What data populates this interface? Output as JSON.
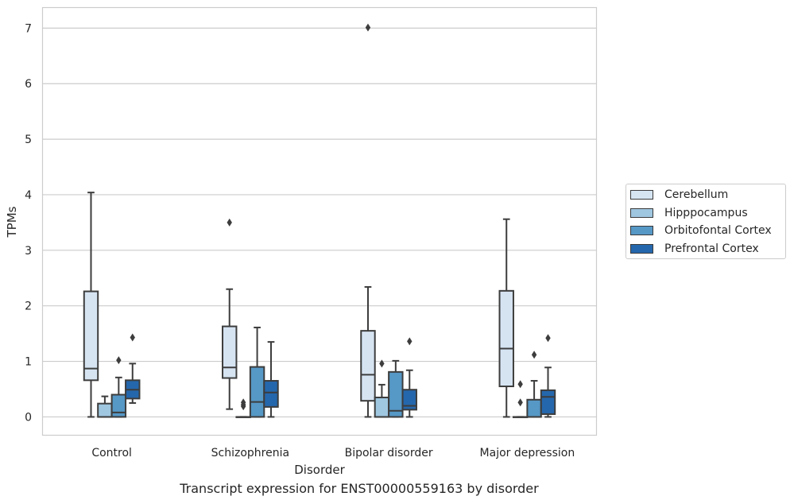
{
  "caption": "Transcript expression for ENST00000559163 by disorder",
  "chart_data": {
    "type": "box",
    "xlabel": "Disorder",
    "ylabel": "TPMs",
    "ylim": [
      -0.33,
      7.37
    ],
    "yticks": [
      0,
      1,
      2,
      3,
      4,
      5,
      6,
      7
    ],
    "grid": "horizontal",
    "legend_position": "right",
    "categories": [
      "Control",
      "Schizophrenia",
      "Bipolar disorder",
      "Major depression"
    ],
    "series": [
      {
        "name": "Cerebellum",
        "color": "#d6e4f2",
        "boxes": [
          {
            "whisker_low": 0,
            "q1": 0.66,
            "median": 0.87,
            "q3": 2.26,
            "whisker_high": 4.04,
            "outliers": []
          },
          {
            "whisker_low": 0.14,
            "q1": 0.7,
            "median": 0.89,
            "q3": 1.63,
            "whisker_high": 2.3,
            "outliers": [
              3.5
            ]
          },
          {
            "whisker_low": 0,
            "q1": 0.29,
            "median": 0.76,
            "q3": 1.55,
            "whisker_high": 2.34,
            "outliers": [
              7.01
            ]
          },
          {
            "whisker_low": 0,
            "q1": 0.55,
            "median": 1.23,
            "q3": 2.27,
            "whisker_high": 3.56,
            "outliers": []
          }
        ]
      },
      {
        "name": "Hipppocampus",
        "color": "#9fc7e0",
        "boxes": [
          {
            "whisker_low": 0,
            "q1": 0,
            "median": 0,
            "q3": 0.24,
            "whisker_high": 0.37,
            "outliers": []
          },
          {
            "whisker_low": 0,
            "q1": 0,
            "median": 0,
            "q3": 0,
            "whisker_high": 0,
            "outliers": [
              0.19,
              0.22,
              0.26
            ]
          },
          {
            "whisker_low": 0,
            "q1": 0,
            "median": 0,
            "q3": 0.35,
            "whisker_high": 0.58,
            "outliers": [
              0.96
            ]
          },
          {
            "whisker_low": 0,
            "q1": 0,
            "median": 0,
            "q3": 0,
            "whisker_high": 0,
            "outliers": [
              0.26,
              0.59
            ]
          }
        ]
      },
      {
        "name": "Orbitofontal Cortex",
        "color": "#5698c6",
        "boxes": [
          {
            "whisker_low": 0,
            "q1": 0,
            "median": 0.08,
            "q3": 0.4,
            "whisker_high": 0.71,
            "outliers": [
              1.02
            ]
          },
          {
            "whisker_low": 0,
            "q1": 0,
            "median": 0.27,
            "q3": 0.9,
            "whisker_high": 1.61,
            "outliers": []
          },
          {
            "whisker_low": 0,
            "q1": 0,
            "median": 0.11,
            "q3": 0.81,
            "whisker_high": 1.01,
            "outliers": []
          },
          {
            "whisker_low": 0,
            "q1": 0,
            "median": 0,
            "q3": 0.31,
            "whisker_high": 0.65,
            "outliers": [
              1.12
            ]
          }
        ]
      },
      {
        "name": "Prefrontal Cortex",
        "color": "#2567ac",
        "boxes": [
          {
            "whisker_low": 0.25,
            "q1": 0.33,
            "median": 0.49,
            "q3": 0.66,
            "whisker_high": 0.96,
            "outliers": [
              1.43
            ]
          },
          {
            "whisker_low": 0,
            "q1": 0.18,
            "median": 0.44,
            "q3": 0.65,
            "whisker_high": 1.35,
            "outliers": []
          },
          {
            "whisker_low": 0,
            "q1": 0.13,
            "median": 0.2,
            "q3": 0.49,
            "whisker_high": 0.84,
            "outliers": [
              1.36
            ]
          },
          {
            "whisker_low": 0,
            "q1": 0.05,
            "median": 0.36,
            "q3": 0.48,
            "whisker_high": 0.89,
            "outliers": [
              1.42
            ]
          }
        ]
      }
    ]
  }
}
